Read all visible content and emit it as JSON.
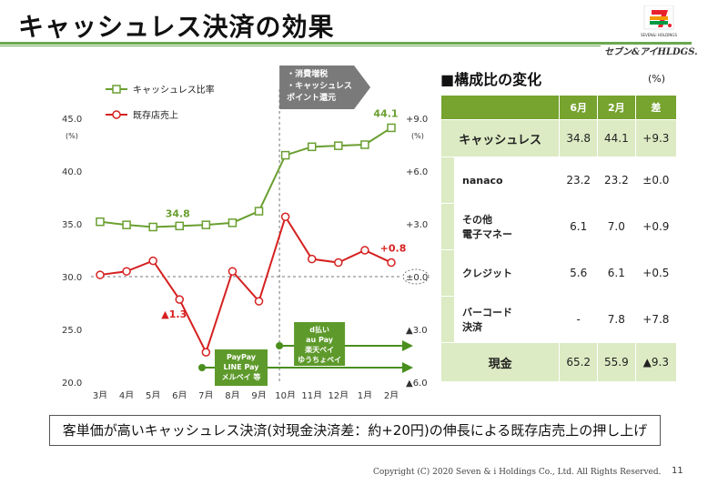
{
  "title": "キャッシュレス決済の効果",
  "company": "セブン&アイHLDGS.",
  "logo_text": "SEVEN&i HOLDINGS",
  "copyright": "Copyright (C) 2020  Seven & i Holdings Co., Ltd.  All Rights Reserved.",
  "page_number": "11",
  "footer_message": "客単価が高いキャッシュレス決済(対現金決済差：約+20円)の伸長による既存店売上の押し上げ",
  "colors": {
    "accent_green": "#6aa84f",
    "line_green": "#6a9f30",
    "line_red": "#d62020",
    "table_header": "#77a32f",
    "table_light": "#dcebc3"
  },
  "chart_data": {
    "type": "line",
    "categories": [
      "3月",
      "4月",
      "5月",
      "6月",
      "7月",
      "8月",
      "9月",
      "10月",
      "11月",
      "12月",
      "1月",
      "2月"
    ],
    "series": [
      {
        "name": "キャッシュレス比率",
        "axis": "left",
        "values": [
          35.2,
          34.9,
          34.7,
          34.8,
          34.9,
          35.1,
          36.2,
          41.5,
          42.3,
          42.4,
          42.5,
          44.1
        ]
      },
      {
        "name": "既存店売上",
        "axis": "right",
        "values": [
          0.1,
          0.3,
          0.9,
          -1.3,
          -4.3,
          0.3,
          -1.4,
          3.4,
          1.0,
          0.8,
          1.5,
          0.8
        ]
      }
    ],
    "left_axis": {
      "ticks": [
        "45.0",
        "40.0",
        "35.0",
        "30.0",
        "25.0",
        "20.0"
      ],
      "unit": "(%)",
      "ylim": [
        20,
        45
      ]
    },
    "right_axis": {
      "ticks": [
        "+9.0",
        "+6.0",
        "+3.0",
        "±0.0",
        "▲3.0",
        "▲6.0"
      ],
      "unit": "(%)",
      "ylim": [
        -6,
        9
      ]
    },
    "data_labels": {
      "cashless_june": "34.8",
      "cashless_feb": "44.1",
      "sales_june": "▲1.3",
      "sales_feb": "+0.8"
    },
    "annotations": {
      "tax_arrow": [
        "・消費増税",
        "・キャッシュレス",
        " ポイント還元"
      ],
      "dpay_box": [
        "d払い",
        "au Pay",
        "楽天ペイ",
        "ゆうちょペイ"
      ],
      "paypay_box": [
        "PayPay",
        "LINE Pay",
        "メルペイ 等"
      ]
    },
    "legend_position": "top-left"
  },
  "table": {
    "title": "■構成比の変化",
    "unit": "(%)",
    "headers": [
      "6月",
      "2月",
      "差"
    ],
    "rows": [
      {
        "label": "キャッシュレス",
        "values": [
          "34.8",
          "44.1",
          "+9.3"
        ],
        "type": "main"
      },
      {
        "label": "nanaco",
        "values": [
          "23.2",
          "23.2",
          "±0.0"
        ],
        "type": "sub"
      },
      {
        "label": "その他\n電子マネー",
        "values": [
          "6.1",
          "7.0",
          "+0.9"
        ],
        "type": "sub"
      },
      {
        "label": "クレジット",
        "values": [
          "5.6",
          "6.1",
          "+0.5"
        ],
        "type": "sub"
      },
      {
        "label": "バーコード\n決済",
        "values": [
          "-",
          "7.8",
          "+7.8"
        ],
        "type": "sub"
      },
      {
        "label": "現金",
        "values": [
          "65.2",
          "55.9",
          "▲9.3"
        ],
        "type": "cash"
      }
    ]
  }
}
